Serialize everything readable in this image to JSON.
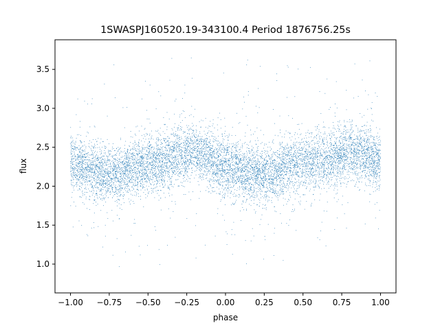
{
  "chart_data": {
    "type": "scatter",
    "title": "1SWASPJ160520.19-343100.4 Period 1876756.25s",
    "xlabel": "phase",
    "ylabel": "flux",
    "xlim": [
      -1.1,
      1.1
    ],
    "ylim": [
      0.63,
      3.88
    ],
    "xticks": [
      -1.0,
      -0.75,
      -0.5,
      -0.25,
      0.0,
      0.25,
      0.5,
      0.75,
      1.0
    ],
    "xtick_labels": [
      "−1.00",
      "−0.75",
      "−0.50",
      "−0.25",
      "0.00",
      "0.25",
      "0.50",
      "0.75",
      "1.00"
    ],
    "yticks": [
      1.0,
      1.5,
      2.0,
      2.5,
      3.0,
      3.5
    ],
    "ytick_labels": [
      "1.0",
      "1.5",
      "2.0",
      "2.5",
      "3.0",
      "3.5"
    ],
    "grid": false,
    "marker_color": "#1f77b4",
    "series": [
      {
        "name": "",
        "phase_range": [
          -1.0,
          1.0
        ],
        "mean_flux_by_phase": {
          "x": [
            -1.0,
            -0.9,
            -0.8,
            -0.7,
            -0.6,
            -0.5,
            -0.4,
            -0.3,
            -0.2,
            -0.1,
            0.0,
            0.1,
            0.2,
            0.3,
            0.4,
            0.5,
            0.6,
            0.7,
            0.8,
            0.9,
            1.0
          ],
          "y": [
            2.3,
            2.25,
            2.15,
            2.15,
            2.25,
            2.3,
            2.3,
            2.4,
            2.45,
            2.35,
            2.25,
            2.2,
            2.15,
            2.15,
            2.25,
            2.3,
            2.35,
            2.35,
            2.45,
            2.4,
            2.3
          ]
        },
        "typical_scatter": 0.18,
        "flux_extent": [
          0.75,
          3.75
        ]
      }
    ]
  }
}
